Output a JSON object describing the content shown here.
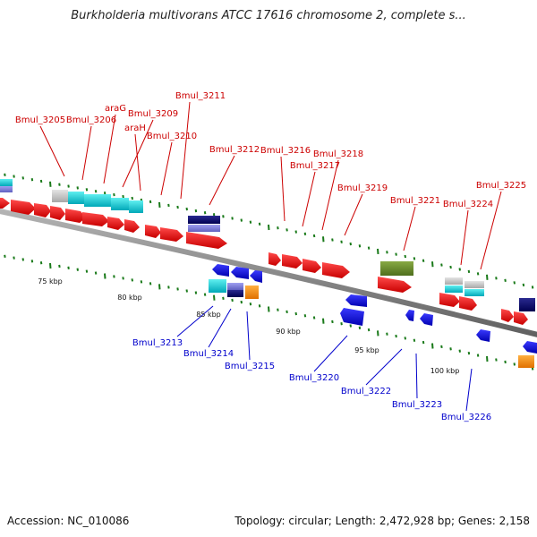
{
  "title": "Burkholderia multivorans ATCC 17616 chromosome 2, complete s...",
  "footer": {
    "accession": "Accession: NC_010086",
    "topology": "Topology: circular; Length: 2,472,928 bp; Genes: 2,158"
  },
  "colors": {
    "backbone": "#8c8c8c",
    "forward_label": "#cc0000",
    "reverse_label": "#0000cc",
    "tick": "#1a7a1a"
  },
  "scale_labels": [
    "75 kbp",
    "80 kbp",
    "85 kbp",
    "90 kbp",
    "95 kbp",
    "100 kbp"
  ],
  "forward_labels": [
    "Bmul_3205",
    "Bmul_3206",
    "araG",
    "Bmul_3209",
    "araH",
    "Bmul_3210",
    "Bmul_3211",
    "Bmul_3212",
    "Bmul_3216",
    "Bmul_3217",
    "Bmul_3218",
    "Bmul_3219",
    "Bmul_3221",
    "Bmul_3224",
    "Bmul_3225"
  ],
  "reverse_labels": [
    "Bmul_3213",
    "Bmul_3214",
    "Bmul_3215",
    "Bmul_3220",
    "Bmul_3222",
    "Bmul_3223",
    "Bmul_3226"
  ]
}
